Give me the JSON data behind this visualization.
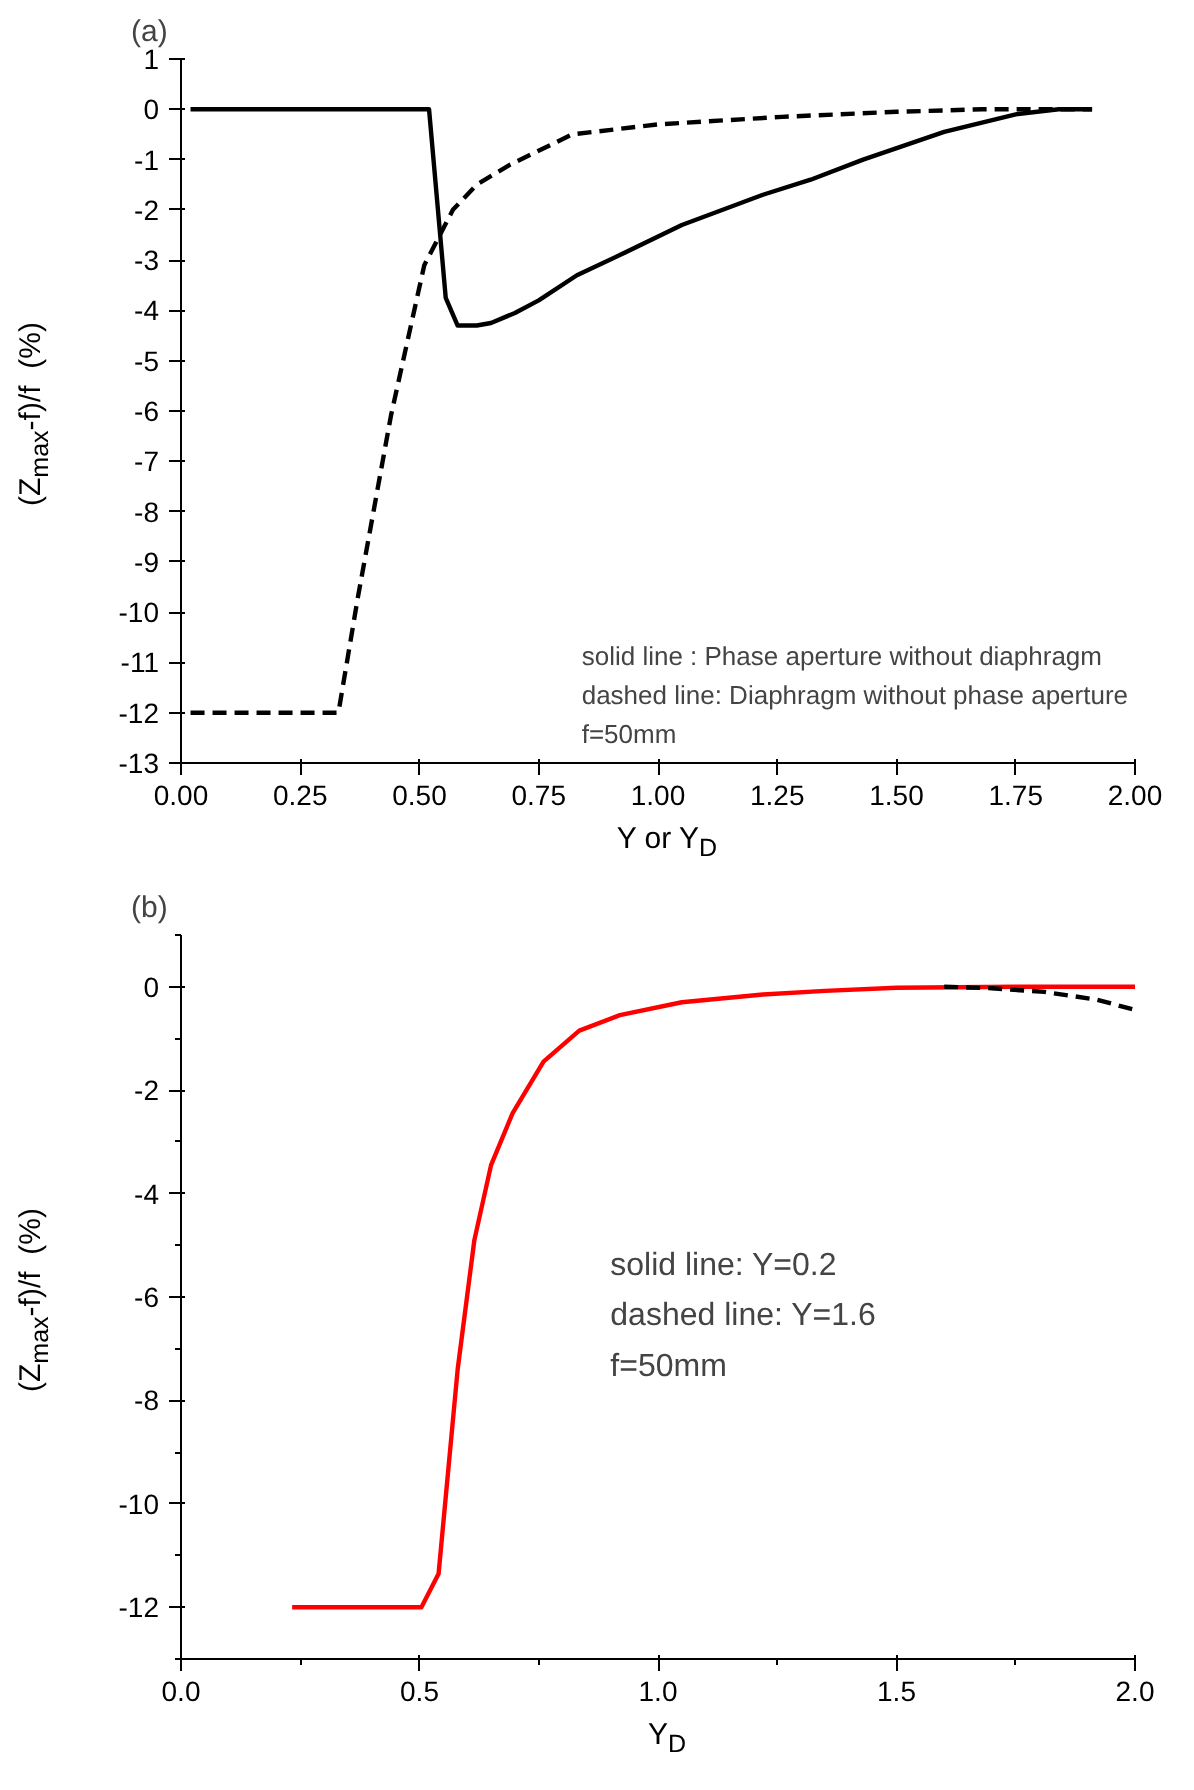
{
  "chart_data": [
    {
      "type": "line",
      "title": "(a)",
      "xlabel": "Y or Y$_{D}$",
      "ylabel": "(Z$_{max}$-f)/f  (%)",
      "xlim": [
        0,
        2
      ],
      "ylim": [
        -13,
        1
      ],
      "xticks": [
        {
          "value": 0,
          "label": "0.00"
        },
        {
          "value": 0.25,
          "label": "0.25"
        },
        {
          "value": 0.5,
          "label": "0.50"
        },
        {
          "value": 0.75,
          "label": "0.75"
        },
        {
          "value": 1,
          "label": "1.00"
        },
        {
          "value": 1.25,
          "label": "1.25"
        },
        {
          "value": 1.5,
          "label": "1.50"
        },
        {
          "value": 1.75,
          "label": "1.75"
        },
        {
          "value": 2,
          "label": "2.00"
        }
      ],
      "yticks": [
        -13,
        -12,
        -11,
        -10,
        -9,
        -8,
        -7,
        -6,
        -5,
        -4,
        -3,
        -2,
        -1,
        0,
        1
      ],
      "grid": false,
      "series": [
        {
          "color": "#000000",
          "line_style": "solid",
          "x": [
            0.02,
            0.52,
            0.555,
            0.58,
            0.62,
            0.65,
            0.7,
            0.75,
            0.83,
            0.92,
            1.05,
            1.22,
            1.32,
            1.43,
            1.6,
            1.75,
            1.84,
            1.91
          ],
          "values": [
            0,
            0,
            -3.75,
            -4.3,
            -4.3,
            -4.25,
            -4.05,
            -3.8,
            -3.3,
            -2.9,
            -2.3,
            -1.7,
            -1.4,
            -1.0,
            -0.45,
            -0.1,
            0,
            0
          ]
        },
        {
          "color": "#000000",
          "line_style": "dashed",
          "x": [
            0.02,
            0.33,
            0.37,
            0.44,
            0.51,
            0.57,
            0.62,
            0.69,
            0.82,
            1.0,
            1.26,
            1.5,
            1.68,
            1.91
          ],
          "values": [
            -12,
            -12,
            -9.75,
            -6.1,
            -3.1,
            -2.0,
            -1.5,
            -1.1,
            -0.5,
            -0.3,
            -0.15,
            -0.05,
            0,
            0
          ]
        }
      ],
      "annotations": [
        "solid line : Phase aperture without diaphragm",
        "dashed line: Diaphragm without phase aperture",
        "f=50mm"
      ]
    },
    {
      "type": "line",
      "title": "(b)",
      "xlabel": "Y$_{D}$",
      "ylabel": "(Z$_{max}$-f)/f  (%)",
      "xlim": [
        0,
        2
      ],
      "ylim": [
        -13,
        1
      ],
      "xticks": [
        {
          "value": 0,
          "label": "0.0"
        },
        {
          "value": 0.25,
          "label": null
        },
        {
          "value": 0.5,
          "label": "0.5"
        },
        {
          "value": 0.75,
          "label": null
        },
        {
          "value": 1,
          "label": "1.0"
        },
        {
          "value": 1.25,
          "label": null
        },
        {
          "value": 1.5,
          "label": "1.5"
        },
        {
          "value": 1.75,
          "label": null
        },
        {
          "value": 2,
          "label": "2.0"
        }
      ],
      "yticks": [
        {
          "value": -13,
          "label": null
        },
        -12,
        {
          "value": -11,
          "label": null
        },
        -10,
        {
          "value": -9,
          "label": null
        },
        -8,
        {
          "value": -7,
          "label": null
        },
        -6,
        {
          "value": -5,
          "label": null
        },
        -4,
        {
          "value": -3,
          "label": null
        },
        -2,
        {
          "value": -1,
          "label": null
        },
        0,
        {
          "value": 1,
          "label": null
        }
      ],
      "grid": false,
      "series": [
        {
          "color": "#ff0000",
          "line_style": "solid",
          "x": [
            0.233,
            0.504,
            0.54,
            0.58,
            0.615,
            0.65,
            0.695,
            0.76,
            0.835,
            0.92,
            1.05,
            1.22,
            1.35,
            1.5,
            1.75,
            2.0
          ],
          "values": [
            -12,
            -12,
            -11.35,
            -7.4,
            -4.9,
            -3.45,
            -2.45,
            -1.45,
            -0.85,
            -0.55,
            -0.3,
            -0.15,
            -0.08,
            -0.02,
            0,
            0
          ]
        },
        {
          "color": "#000000",
          "line_style": "dashed",
          "x": [
            1.6,
            1.7,
            1.81,
            1.92,
            2.0
          ],
          "values": [
            0,
            -0.03,
            -0.1,
            -0.25,
            -0.45
          ]
        }
      ],
      "annotations": [
        "solid line: Y=0.2",
        "dashed line: Y=1.6",
        "f=50mm"
      ]
    }
  ]
}
